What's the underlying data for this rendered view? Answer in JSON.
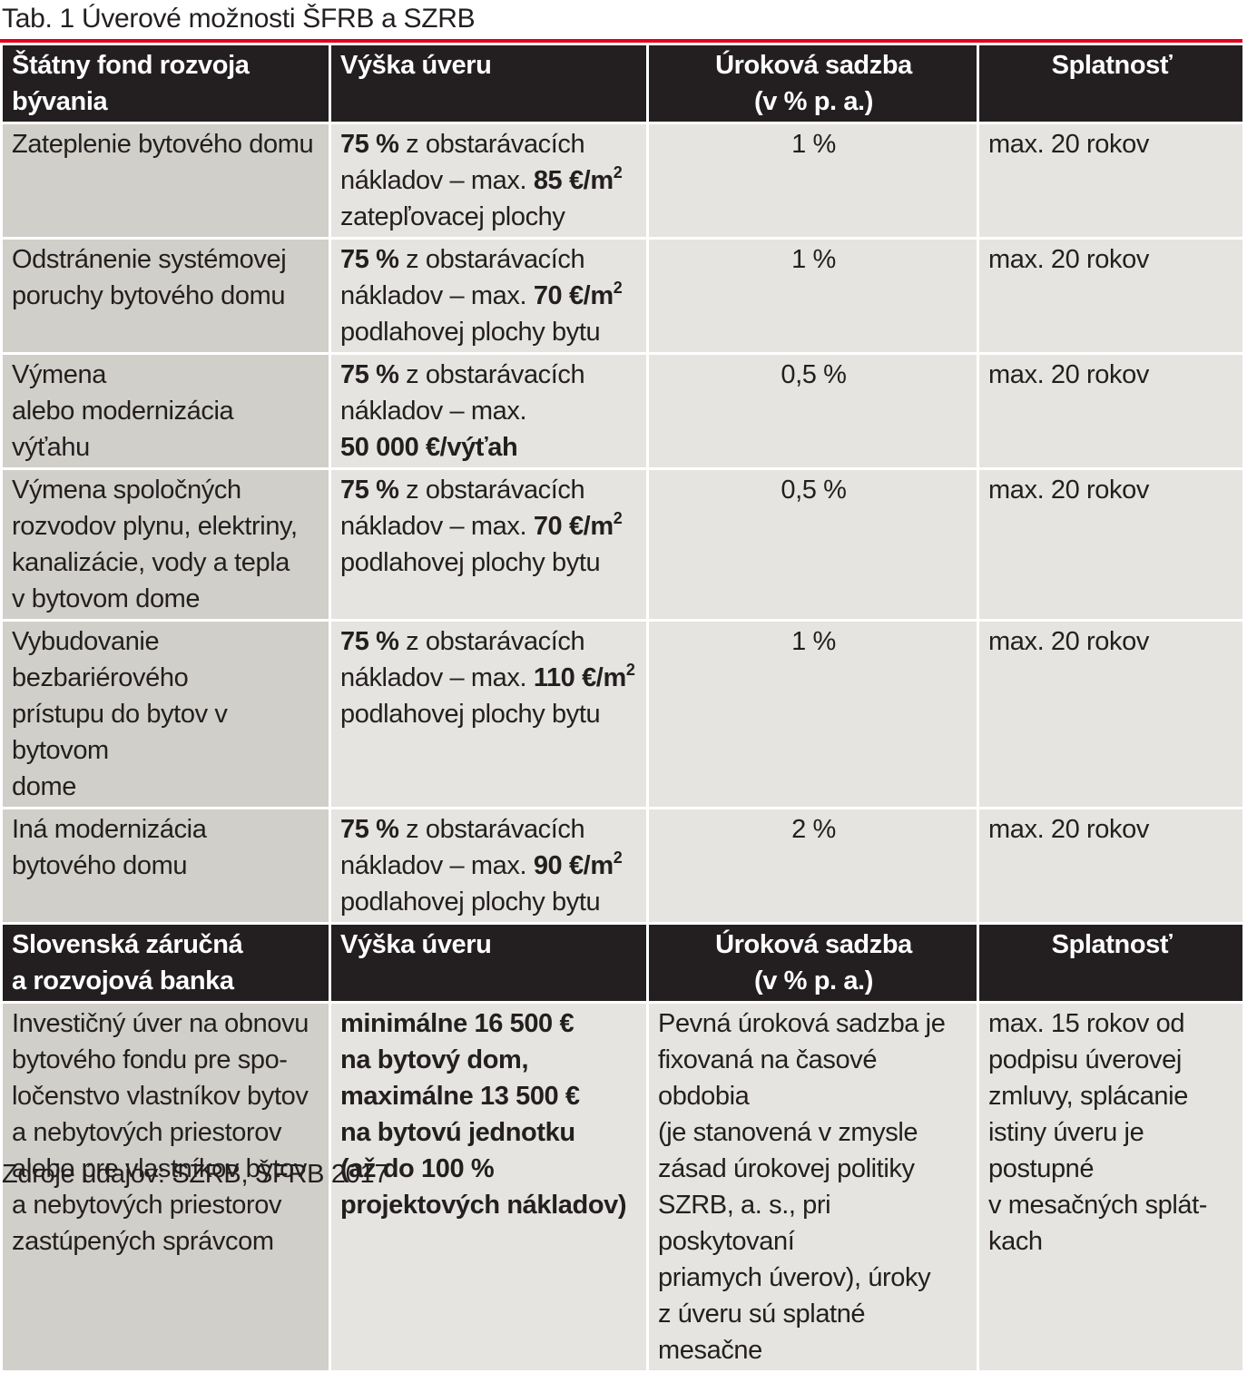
{
  "caption": "Tab. 1 Úverové možnosti ŠFRB a SZRB",
  "accent_color": "#e2001a",
  "sfrb": {
    "headers": {
      "col1": [
        "Štátny fond rozvoja",
        "bývania"
      ],
      "col2": "Výška úveru",
      "col3": [
        "Úroková sadzba",
        "(v % p. a.)"
      ],
      "col4": "Splatnosť"
    },
    "rows": [
      {
        "purpose": [
          "Zateplenie bytového domu"
        ],
        "amount_pct": "75 %",
        "amount_l1": " z obstarávacích",
        "amount_l2": "nákladov – max. ",
        "amount_value": "85 €/m",
        "amount_sup": "2",
        "amount_l3": "zatepľovacej plochy",
        "rate": "1 %",
        "term": "max. 20 rokov"
      },
      {
        "purpose": [
          "Odstránenie systémovej",
          "poruchy bytového domu"
        ],
        "amount_pct": "75 %",
        "amount_l1": " z obstarávacích",
        "amount_l2": "nákladov – max. ",
        "amount_value": "70 €/m",
        "amount_sup": "2",
        "amount_l3": "podlahovej plochy bytu",
        "rate": "1 %",
        "term": "max. 20 rokov"
      },
      {
        "purpose": [
          "Výmena",
          "alebo modernizácia",
          "výťahu"
        ],
        "amount_pct": "75 %",
        "amount_l1": " z obstarávacích",
        "amount_l2": "nákladov – max.",
        "amount_value_line": "50 000 €/výťah",
        "rate": "0,5 %",
        "term": "max. 20 rokov"
      },
      {
        "purpose": [
          "Výmena spoločných",
          "rozvodov plynu, elektriny,",
          "kanalizácie, vody a tepla",
          "v bytovom dome"
        ],
        "amount_pct": "75 %",
        "amount_l1": " z obstarávacích",
        "amount_l2": "nákladov – max. ",
        "amount_value": "70 €/m",
        "amount_sup": "2",
        "amount_l3": "podlahovej plochy bytu",
        "rate": "0,5 %",
        "term": "max. 20 rokov"
      },
      {
        "purpose": [
          "Vybudovanie bezbariérového",
          "prístupu do bytov v bytovom",
          "dome"
        ],
        "amount_pct": "75 %",
        "amount_l1": " z obstarávacích",
        "amount_l2": "nákladov – max. ",
        "amount_value": "110 €/m",
        "amount_sup": "2",
        "amount_l3": "podlahovej plochy bytu",
        "rate": "1 %",
        "term": "max. 20 rokov"
      },
      {
        "purpose": [
          "Iná modernizácia",
          "bytového domu"
        ],
        "amount_pct": "75 %",
        "amount_l1": " z obstarávacích",
        "amount_l2": "nákladov – max. ",
        "amount_value": "90 €/m",
        "amount_sup": "2",
        "amount_l3": "podlahovej plochy bytu",
        "rate": "2 %",
        "term": "max. 20 rokov"
      }
    ]
  },
  "szrb": {
    "headers": {
      "col1": [
        "Slovenská záručná",
        "a rozvojová banka"
      ],
      "col2": "Výška úveru",
      "col3": [
        "Úroková sadzba",
        "(v % p. a.)"
      ],
      "col4": "Splatnosť"
    },
    "row": {
      "purpose": [
        "Investičný úver na obnovu",
        "bytového fondu pre spo-",
        "ločenstvo vlastníkov bytov",
        "a nebytových priestorov",
        "alebo pre vlastníkov bytov",
        "a nebytových priestorov",
        "zastúpených správcom"
      ],
      "amount": [
        "minimálne 16 500 €",
        "na bytový dom,",
        "maximálne 13 500 €",
        "na bytovú jednotku",
        "(až do 100 %",
        "projektových nákladov)"
      ],
      "rate": [
        "Pevná úroková sadzba je",
        "fixovaná na časové obdobia",
        "(je stanovená v zmysle",
        "zásad úrokovej politiky",
        "SZRB, a. s., pri poskytovaní",
        "priamych úverov), úroky",
        "z úveru sú splatné mesačne"
      ],
      "term": [
        "max. 15 rokov od",
        "podpisu úverovej",
        "zmluvy,  splácanie",
        "istiny úveru je",
        "postupné",
        "v mesačných splát-",
        "kach"
      ]
    }
  },
  "source": "Zdroje údajov: SZRB, ŠFRB 2017"
}
